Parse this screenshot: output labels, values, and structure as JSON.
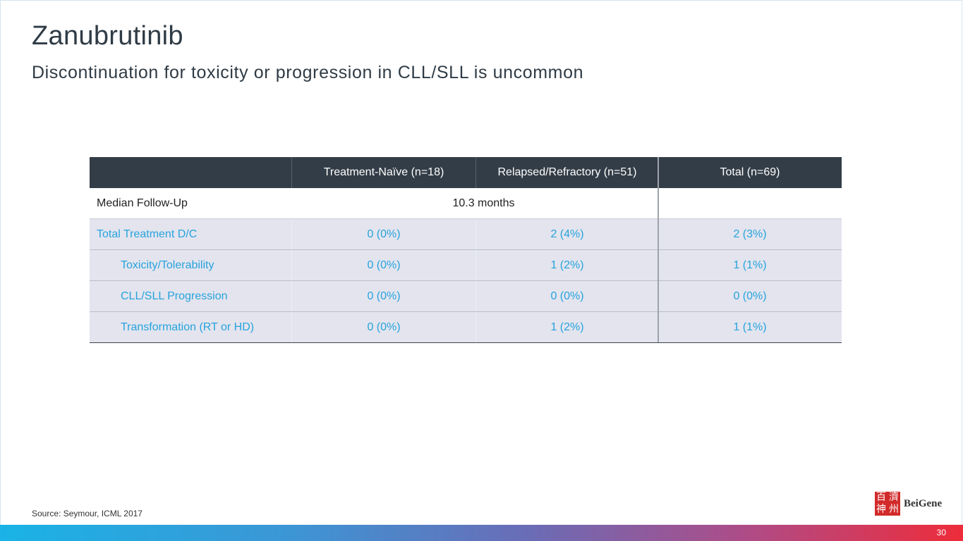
{
  "title": "Zanubrutinib",
  "subtitle": "Discontinuation for toxicity or progression in CLL/SLL is uncommon",
  "table": {
    "headers": [
      "",
      "Treatment-Naïve (n=18)",
      "Relapsed/Refractory (n=51)",
      "Total (n=69)"
    ],
    "follow_up": {
      "label": "Median Follow-Up",
      "value": "10.3  months"
    },
    "rows": [
      {
        "label": "Total Treatment D/C",
        "tn": "0 (0%)",
        "rr": "2 (4%)",
        "total": "2 (3%)"
      },
      {
        "label": "Toxicity/Tolerability",
        "tn": "0 (0%)",
        "rr": "1 (2%)",
        "total": "1 (1%)"
      },
      {
        "label": "CLL/SLL Progression",
        "tn": "0 (0%)",
        "rr": "0 (0%)",
        "total": "0 (0%)"
      },
      {
        "label": "Transformation (RT or HD)",
        "tn": "0 (0%)",
        "rr": "1 (2%)",
        "total": "1 (1%)"
      }
    ]
  },
  "source": "Source: Seymour, ICML 2017",
  "logo": {
    "text": "BeiGene",
    "seal_chars": [
      "百",
      "濟",
      "神",
      "州"
    ]
  },
  "page_number": "30",
  "colors": {
    "header_bg": "#333d47",
    "accent_blue": "#27a3dc",
    "row_bg": "#e3e4ee",
    "brand_red": "#d22a2a"
  }
}
